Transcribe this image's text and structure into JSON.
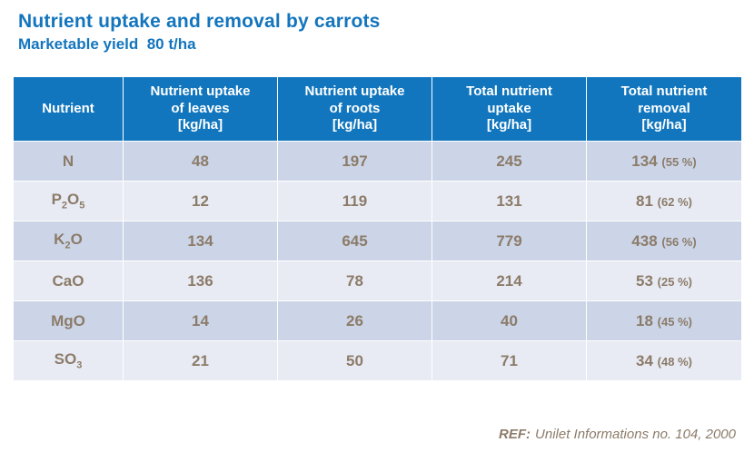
{
  "page": {
    "title": "Nutrient uptake and removal by carrots",
    "subtitle": "Marketable yield  80 t/ha",
    "footer": {
      "ref_label": "REF:",
      "ref_text": "Unilet Informations no. 104, 2000"
    }
  },
  "colors": {
    "title_blue": "#1375BD",
    "header_bg": "#1176BD",
    "header_text": "#FFFFFF",
    "row_dark": "#CBD5E7",
    "row_light": "#E8EBF3",
    "body_text": "#8C7B69"
  },
  "table": {
    "columns": [
      {
        "label": "Nutrient"
      },
      {
        "label": "Nutrient uptake\nof leaves\n[kg/ha]"
      },
      {
        "label": "Nutrient uptake\nof roots\n[kg/ha]"
      },
      {
        "label": "Total nutrient\nuptake\n[kg/ha]"
      },
      {
        "label": "Total nutrient\nremoval\n[kg/ha]"
      }
    ],
    "rows": [
      {
        "nutrient": "N",
        "uptake_leaves": "48",
        "uptake_roots": "197",
        "total_uptake": "245",
        "removal": "134",
        "removal_pct": "(55 %)"
      },
      {
        "nutrient": "P₂O₅",
        "uptake_leaves": "12",
        "uptake_roots": "119",
        "total_uptake": "131",
        "removal": "81",
        "removal_pct": "(62 %)"
      },
      {
        "nutrient": "K₂O",
        "uptake_leaves": "134",
        "uptake_roots": "645",
        "total_uptake": "779",
        "removal": "438",
        "removal_pct": "(56 %)"
      },
      {
        "nutrient": "CaO",
        "uptake_leaves": "136",
        "uptake_roots": "78",
        "total_uptake": "214",
        "removal": "53",
        "removal_pct": "(25 %)"
      },
      {
        "nutrient": "MgO",
        "uptake_leaves": "14",
        "uptake_roots": "26",
        "total_uptake": "40",
        "removal": "18",
        "removal_pct": "(45 %)"
      },
      {
        "nutrient": "SO₃",
        "uptake_leaves": "21",
        "uptake_roots": "50",
        "total_uptake": "71",
        "removal": "34",
        "removal_pct": "(48 %)"
      }
    ]
  },
  "chart_data": {
    "type": "table",
    "title": "Nutrient uptake and removal by carrots",
    "subtitle": "Marketable yield 80 t/ha",
    "columns": [
      "Nutrient",
      "Nutrient uptake of leaves [kg/ha]",
      "Nutrient uptake of roots [kg/ha]",
      "Total nutrient uptake [kg/ha]",
      "Total nutrient removal [kg/ha]"
    ],
    "rows": [
      [
        "N",
        48,
        197,
        245,
        "134 (55 %)"
      ],
      [
        "P2O5",
        12,
        119,
        131,
        "81 (62 %)"
      ],
      [
        "K2O",
        134,
        645,
        779,
        "438 (56 %)"
      ],
      [
        "CaO",
        136,
        78,
        214,
        "53 (25 %)"
      ],
      [
        "MgO",
        14,
        26,
        40,
        "18 (45 %)"
      ],
      [
        "SO3",
        21,
        50,
        71,
        "34 (48 %)"
      ]
    ]
  }
}
